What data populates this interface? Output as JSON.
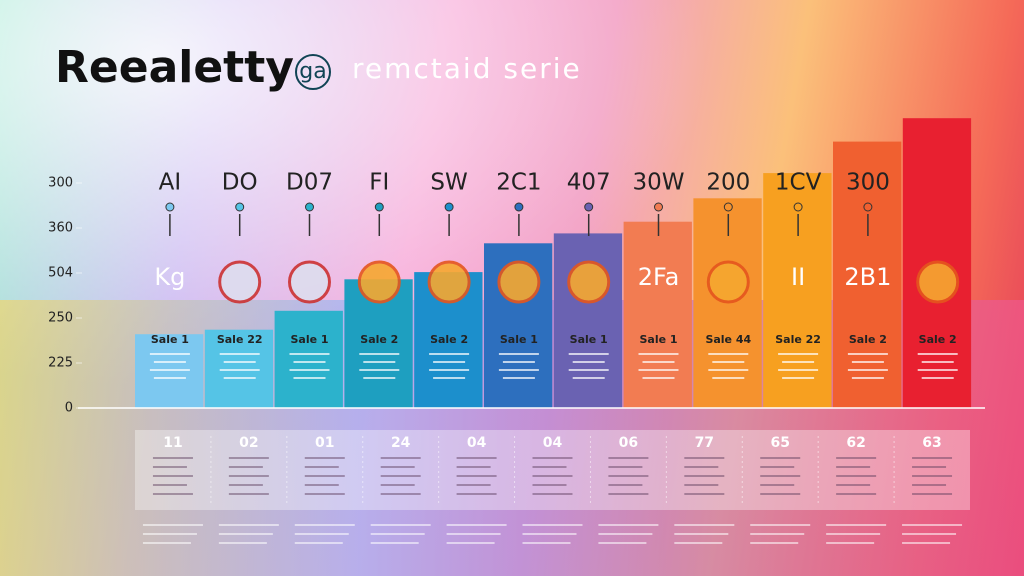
{
  "chart_data": {
    "type": "bar",
    "title": "Reealetty",
    "logo": "ga",
    "subtitle": "remctaid serie",
    "categories": [
      "AI",
      "DO",
      "D07",
      "FI",
      "SW",
      "2C1",
      "407",
      "30W",
      "200",
      "1CV",
      "300",
      null
    ],
    "values": [
      82,
      87,
      108,
      143,
      151,
      183,
      194,
      207,
      233,
      261,
      296,
      322
    ],
    "colors": [
      "#7cc8f0",
      "#55c4e6",
      "#2cb2cc",
      "#1e9fc0",
      "#1c8fcc",
      "#2d6fbe",
      "#6a62b2",
      "#f27c52",
      "#f5922e",
      "#f7a020",
      "#f06030",
      "#e82030"
    ],
    "bar_texts": [
      "Kg",
      null,
      null,
      null,
      null,
      null,
      null,
      "2Fa",
      null,
      "II",
      "2B1",
      null
    ],
    "bar_labels": [
      "Sale 1",
      "Sale 22",
      "Sale 1",
      "Sale 2",
      "Sale 2",
      "Sale 1",
      "Sale 1",
      "Sale 1",
      "Sale 44",
      "Sale 22",
      "Sale 2",
      "Sale 2"
    ],
    "table_values": [
      "11",
      "02",
      "01",
      "24",
      "04",
      "04",
      "06",
      "77",
      "65",
      "62",
      "63"
    ],
    "ylim": [
      0,
      330
    ],
    "yticks": [
      0,
      {
        "value": 50,
        "label": "225"
      },
      {
        "value": 100,
        "label": "250"
      },
      {
        "value": 150,
        "label": "504"
      },
      {
        "value": 200,
        "label": "360"
      },
      {
        "value": 250,
        "label": "300"
      }
    ]
  }
}
